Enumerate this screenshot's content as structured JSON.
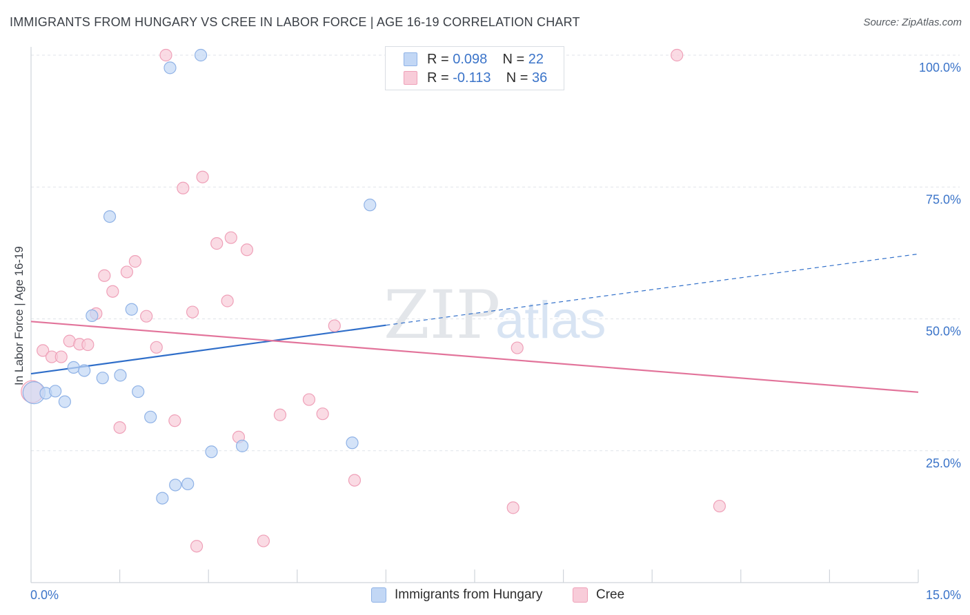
{
  "header": {
    "title": "IMMIGRANTS FROM HUNGARY VS CREE IN LABOR FORCE | AGE 16-19 CORRELATION CHART",
    "source": "Source: ZipAtlas.com"
  },
  "watermark": {
    "zip": "ZIP",
    "atlas": "atlas"
  },
  "legend_top": {
    "rows": [
      {
        "r_label": "R = ",
        "r_value": "0.098",
        "n_label": "N = ",
        "n_value": "22"
      },
      {
        "r_label": "R = ",
        "r_value": "-0.113",
        "n_label": "N = ",
        "n_value": "36"
      }
    ]
  },
  "legend_bottom": {
    "items": [
      {
        "label": "Immigrants from Hungary"
      },
      {
        "label": "Cree"
      }
    ]
  },
  "colors": {
    "blue_fill": "#c2d7f5",
    "blue_stroke": "#8fb2e6",
    "blue_line": "#2f6ec9",
    "pink_fill": "#f8ccd9",
    "pink_stroke": "#efa0b8",
    "pink_line": "#e2739a",
    "axis_text": "#3b74c9",
    "grid": "#dfe3e8",
    "watermark": "#e5e8ec"
  },
  "chart_data": {
    "type": "scatter",
    "title": "IMMIGRANTS FROM HUNGARY VS CREE IN LABOR FORCE | AGE 16-19 CORRELATION CHART",
    "xlabel": "",
    "ylabel": "In Labor Force | Age 16-19",
    "xlim": [
      0,
      15
    ],
    "ylim": [
      0,
      100
    ],
    "x_tick_labels": [
      "0.0%",
      "15.0%"
    ],
    "y_ticks": [
      25,
      50,
      75,
      100
    ],
    "y_tick_labels": [
      "25.0%",
      "50.0%",
      "75.0%",
      "100.0%"
    ],
    "series": [
      {
        "name": "Immigrants from Hungary",
        "R": 0.098,
        "N": 22,
        "points": [
          {
            "x": 0.05,
            "y": 36.0,
            "big": true
          },
          {
            "x": 0.25,
            "y": 35.9
          },
          {
            "x": 0.41,
            "y": 36.3
          },
          {
            "x": 0.57,
            "y": 34.3
          },
          {
            "x": 0.72,
            "y": 40.8
          },
          {
            "x": 0.9,
            "y": 40.2
          },
          {
            "x": 1.03,
            "y": 50.6
          },
          {
            "x": 1.21,
            "y": 38.8
          },
          {
            "x": 1.33,
            "y": 69.4
          },
          {
            "x": 1.51,
            "y": 39.3
          },
          {
            "x": 1.7,
            "y": 51.8
          },
          {
            "x": 1.81,
            "y": 36.2
          },
          {
            "x": 2.02,
            "y": 31.4
          },
          {
            "x": 2.22,
            "y": 16.0
          },
          {
            "x": 2.35,
            "y": 97.6
          },
          {
            "x": 2.44,
            "y": 18.5
          },
          {
            "x": 2.65,
            "y": 18.7
          },
          {
            "x": 2.87,
            "y": 100.0
          },
          {
            "x": 3.05,
            "y": 24.8
          },
          {
            "x": 3.57,
            "y": 25.9
          },
          {
            "x": 5.43,
            "y": 26.5
          },
          {
            "x": 5.73,
            "y": 71.6
          }
        ],
        "trend": {
          "x0": 0,
          "y0": 39.6,
          "x1": 6.0,
          "y1": 48.8,
          "dash_to_x": 15,
          "dash_to_y": 62.3
        }
      },
      {
        "name": "Cree",
        "R": -0.113,
        "N": 36,
        "points": [
          {
            "x": 0.02,
            "y": 36.2,
            "big": true
          },
          {
            "x": 0.2,
            "y": 44.0
          },
          {
            "x": 0.35,
            "y": 42.8
          },
          {
            "x": 0.51,
            "y": 42.8
          },
          {
            "x": 0.65,
            "y": 45.8
          },
          {
            "x": 0.82,
            "y": 45.2
          },
          {
            "x": 0.96,
            "y": 45.1
          },
          {
            "x": 1.1,
            "y": 51.0
          },
          {
            "x": 1.24,
            "y": 58.2
          },
          {
            "x": 1.38,
            "y": 55.2
          },
          {
            "x": 1.5,
            "y": 29.4
          },
          {
            "x": 1.62,
            "y": 58.9
          },
          {
            "x": 1.76,
            "y": 60.9
          },
          {
            "x": 1.95,
            "y": 50.5
          },
          {
            "x": 2.12,
            "y": 44.6
          },
          {
            "x": 2.28,
            "y": 100.0
          },
          {
            "x": 2.43,
            "y": 30.7
          },
          {
            "x": 2.57,
            "y": 74.8
          },
          {
            "x": 2.73,
            "y": 51.3
          },
          {
            "x": 2.8,
            "y": 6.9
          },
          {
            "x": 2.9,
            "y": 76.9
          },
          {
            "x": 3.14,
            "y": 64.3
          },
          {
            "x": 3.32,
            "y": 53.4
          },
          {
            "x": 3.38,
            "y": 65.4
          },
          {
            "x": 3.51,
            "y": 27.6
          },
          {
            "x": 3.65,
            "y": 63.1
          },
          {
            "x": 3.93,
            "y": 7.9
          },
          {
            "x": 4.21,
            "y": 31.8
          },
          {
            "x": 4.7,
            "y": 34.7
          },
          {
            "x": 4.93,
            "y": 32.0
          },
          {
            "x": 5.13,
            "y": 48.7
          },
          {
            "x": 5.47,
            "y": 19.4
          },
          {
            "x": 8.15,
            "y": 14.2
          },
          {
            "x": 8.22,
            "y": 44.5
          },
          {
            "x": 10.92,
            "y": 100.0
          },
          {
            "x": 11.64,
            "y": 14.5
          }
        ],
        "trend": {
          "x0": 0,
          "y0": 49.5,
          "x1": 15,
          "y1": 36.1
        }
      }
    ]
  }
}
